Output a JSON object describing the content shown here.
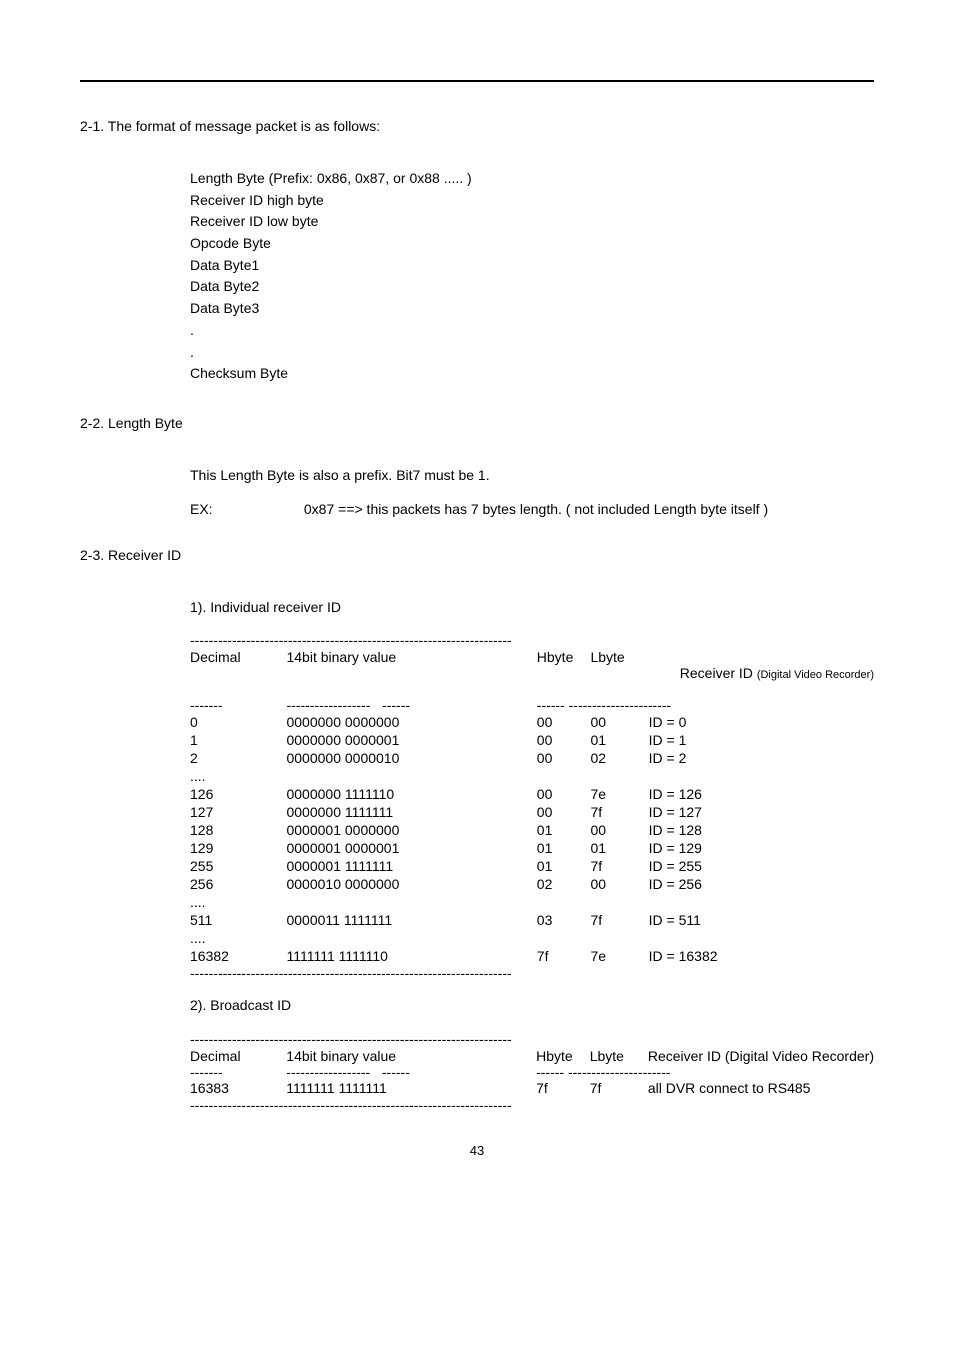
{
  "hr": "",
  "s21": {
    "heading": "2-1. The format of message packet is as follows:",
    "lines": {
      "l1": "Length Byte  (Prefix: 0x86, 0x87, or 0x88 ..... )",
      "l2": "Receiver ID high byte",
      "l3": "Receiver ID low byte",
      "l4": "Opcode Byte",
      "l5": "Data Byte1",
      "l6": "Data Byte2",
      "l7": "Data Byte3",
      "l8": ".",
      "l9": ".",
      "l10": "Checksum Byte"
    }
  },
  "s22": {
    "heading": "2-2. Length Byte",
    "line1": "This Length Byte is also a prefix. Bit7 must be 1.",
    "ex_label": "EX:",
    "ex_text": "0x87 ==> this packets has 7 bytes length. ( not included Length byte itself )"
  },
  "s23": {
    "heading": "2-3. Receiver ID",
    "sub1": "1). Individual receiver ID",
    "dash_long": "---------------------------------------------------------------------",
    "dash_dec": "-------",
    "dash_bin": "------------------   ------",
    "dash_hl": "------ ----------------------",
    "col_dec": "Decimal",
    "col_bin": "14bit binary value",
    "col_hb": "Hbyte",
    "col_lb": "Lbyte",
    "col_rid": "Receiver ID ",
    "col_rid_small": "(Digital Video Recorder)",
    "rows": [
      {
        "dec": "0",
        "bin": "0000000 0000000",
        "hb": "00",
        "lb": "00",
        "rid": "ID = 0"
      },
      {
        "dec": "1",
        "bin": "0000000 0000001",
        "hb": "00",
        "lb": "01",
        "rid": "ID = 1"
      },
      {
        "dec": "2",
        "bin": "0000000 0000010",
        "hb": "00",
        "lb": "02",
        "rid": "ID = 2"
      },
      {
        "dec": "....",
        "bin": "",
        "hb": "",
        "lb": "",
        "rid": ""
      },
      {
        "dec": "126",
        "bin": "0000000 1111110",
        "hb": "00",
        "lb": "7e",
        "rid": "ID = 126"
      },
      {
        "dec": "127",
        "bin": "0000000 1111111",
        "hb": "00",
        "lb": "7f",
        "rid": "ID = 127"
      },
      {
        "dec": "128",
        "bin": "0000001 0000000",
        "hb": "01",
        "lb": "00",
        "rid": "ID = 128"
      },
      {
        "dec": "129",
        "bin": "0000001 0000001",
        "hb": "01",
        "lb": "01",
        "rid": "ID = 129"
      },
      {
        "dec": "255",
        "bin": "0000001 1111111",
        "hb": "01",
        "lb": "7f",
        "rid": "ID = 255"
      },
      {
        "dec": "256",
        "bin": "0000010 0000000",
        "hb": "02",
        "lb": "00",
        "rid": "ID = 256"
      },
      {
        "dec": "....",
        "bin": "",
        "hb": "",
        "lb": "",
        "rid": ""
      },
      {
        "dec": "511",
        "bin": "0000011 1111111",
        "hb": "03",
        "lb": "7f",
        "rid": "ID = 511"
      },
      {
        "dec": "....",
        "bin": "",
        "hb": "",
        "lb": "",
        "rid": ""
      },
      {
        "dec": "16382",
        "bin": "1111111 1111110",
        "hb": "7f",
        "lb": "7e",
        "rid": "ID = 16382"
      }
    ],
    "sub2": "2). Broadcast ID",
    "col_rid2": "Receiver ID (Digital Video Recorder)",
    "row2": {
      "dec": "16383",
      "bin": "1111111 1111111",
      "hb": "7f",
      "lb": "7f",
      "rid": "all DVR connect to RS485"
    }
  },
  "pagenum": "43"
}
